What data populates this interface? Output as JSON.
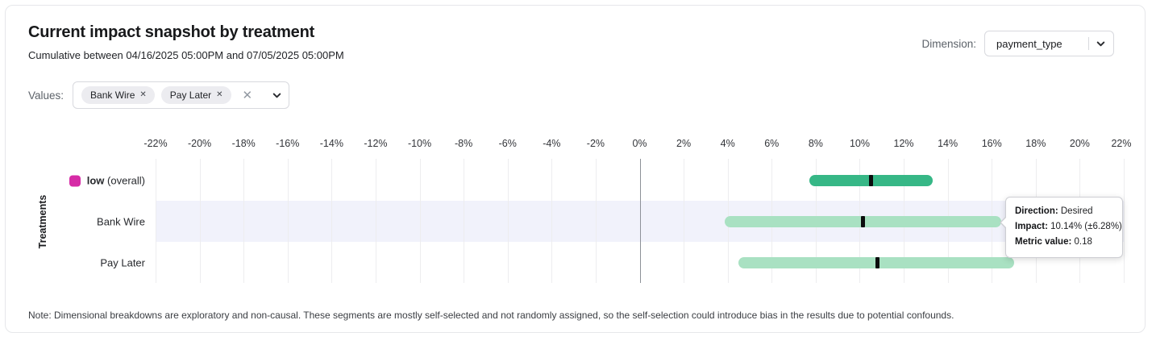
{
  "header": {
    "title": "Current impact snapshot by treatment",
    "subtitle": "Cumulative between 04/16/2025 05:00PM and 07/05/2025 05:00PM",
    "dimension_label": "Dimension:",
    "dimension_value": "payment_type"
  },
  "filters": {
    "label": "Values:",
    "chips": [
      {
        "label": "Bank Wire",
        "remove_icon": "✕"
      },
      {
        "label": "Pay Later",
        "remove_icon": "✕"
      }
    ],
    "clear_icon": "✕"
  },
  "chart_data": {
    "type": "bar",
    "subtype": "horizontal-range-interval",
    "title": "Current impact snapshot by treatment",
    "ylabel": "Treatments",
    "xlim": [
      -22,
      22
    ],
    "x_tick_step": 2,
    "x_tick_suffix": "%",
    "grid": true,
    "zero_line": true,
    "rows": [
      {
        "label_bold": "low",
        "label_rest": "(overall)",
        "legend_color": "#d62ba6",
        "low": 7.7,
        "high": 13.3,
        "center": 10.5,
        "bar_color": "#36b786",
        "highlighted": false
      },
      {
        "label": "Bank Wire",
        "low": 3.86,
        "high": 16.42,
        "center": 10.14,
        "bar_color": "#a9e1c2",
        "highlighted": true
      },
      {
        "label": "Pay Later",
        "low": 4.5,
        "high": 17.0,
        "center": 10.8,
        "bar_color": "#a9e1c2",
        "highlighted": false
      }
    ]
  },
  "tooltip": {
    "rows": [
      {
        "label": "Direction:",
        "value": "Desired"
      },
      {
        "label": "Impact:",
        "value": "10.14% (±6.28%)"
      },
      {
        "label": "Metric value:",
        "value": "0.18"
      }
    ]
  },
  "note": "Note: Dimensional breakdowns are exploratory and non-causal. These segments are mostly self-selected and not randomly assigned, so the self-selection could introduce bias in the results due to potential confounds."
}
